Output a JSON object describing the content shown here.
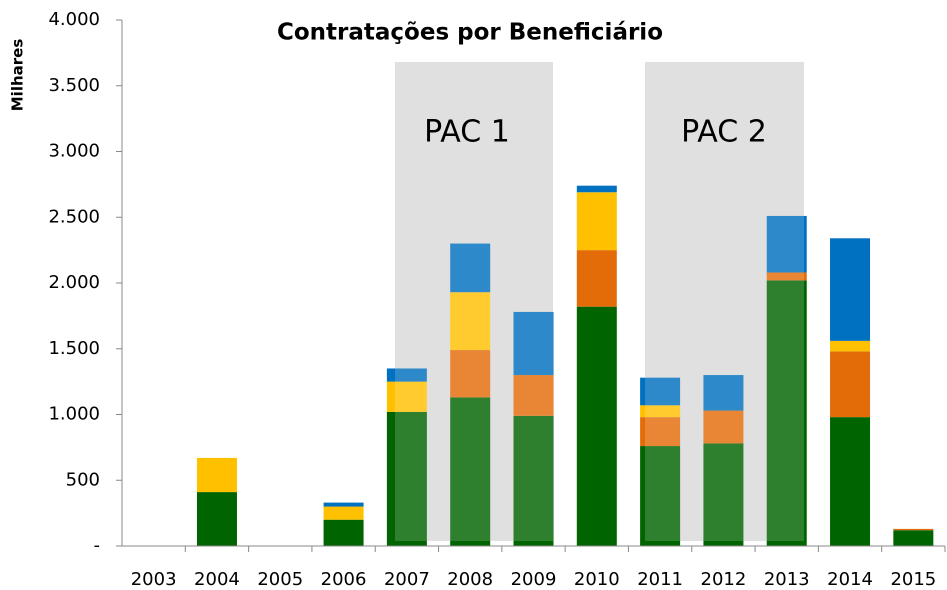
{
  "chart_data": {
    "type": "stacked_bar",
    "title": "Contratações por Beneficiário",
    "y_label": "Milhares",
    "annotations": [
      "PAC 1",
      "PAC 2"
    ],
    "categories": [
      "2003",
      "2004",
      "2005",
      "2006",
      "2007",
      "2008",
      "2009",
      "2010",
      "2011",
      "2012",
      "2013",
      "2014",
      "2015"
    ],
    "series": [
      {
        "color": "#006400",
        "values": [
          0,
          410,
          0,
          200,
          1020,
          1130,
          990,
          1820,
          760,
          780,
          2020,
          980,
          120
        ]
      },
      {
        "color": "#e36c09",
        "values": [
          0,
          0,
          0,
          0,
          0,
          360,
          310,
          430,
          220,
          250,
          60,
          500,
          10
        ]
      },
      {
        "color": "#ffc000",
        "values": [
          0,
          260,
          0,
          100,
          230,
          440,
          0,
          440,
          90,
          0,
          0,
          80,
          0
        ]
      },
      {
        "color": "#0070c0",
        "values": [
          0,
          0,
          0,
          30,
          100,
          370,
          480,
          50,
          210,
          270,
          430,
          780,
          0
        ]
      }
    ],
    "ylim": [
      0,
      4000
    ],
    "yticks": [
      {
        "value": 0,
        "label": "-"
      },
      500,
      {
        "value": 1000,
        "label": "1.000"
      },
      {
        "value": 1500,
        "label": "1.500"
      },
      {
        "value": 2000,
        "label": "2.000"
      },
      {
        "value": 2500,
        "label": "2.500"
      },
      {
        "value": 3000,
        "label": "3.000"
      },
      {
        "value": 3500,
        "label": "3.500"
      },
      {
        "value": 4000,
        "label": "4.000"
      }
    ]
  }
}
